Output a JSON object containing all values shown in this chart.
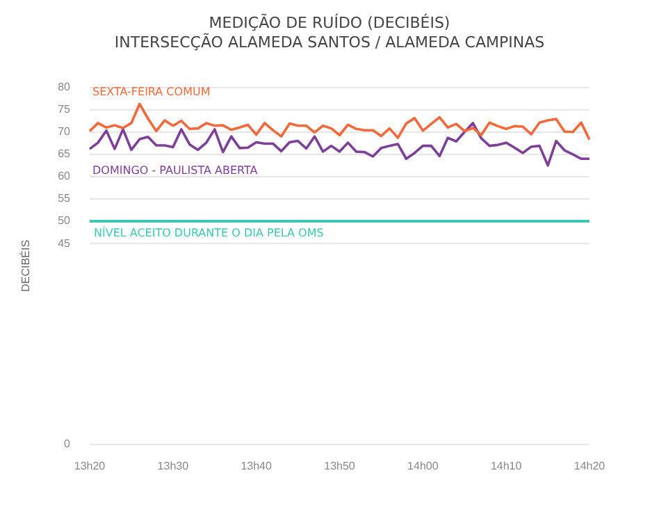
{
  "chart_data": {
    "type": "line",
    "title": "MEDIÇÃO DE RUÍDO (DECIBÉIS)",
    "subtitle": "INTERSECÇÃO ALAMEDA SANTOS / ALAMEDA CAMPINAS",
    "ylabel": "DECIBÉIS",
    "categories": [
      "13h20",
      null,
      null,
      null,
      null,
      null,
      null,
      null,
      null,
      null,
      "13h30",
      null,
      null,
      null,
      null,
      null,
      null,
      null,
      null,
      null,
      "13h40",
      null,
      null,
      null,
      null,
      null,
      null,
      null,
      null,
      null,
      "13h50",
      null,
      null,
      null,
      null,
      null,
      null,
      null,
      null,
      null,
      "14h00",
      null,
      null,
      null,
      null,
      null,
      null,
      null,
      null,
      null,
      "14h10",
      null,
      null,
      null,
      null,
      null,
      null,
      null,
      null,
      null,
      "14h20"
    ],
    "series": [
      {
        "name": "SEXTA-FEIRA COMUM",
        "color": "#f26a3b",
        "values": [
          70.2,
          72,
          71,
          71.5,
          70.9,
          72,
          76.3,
          73,
          70.2,
          72.6,
          71.4,
          72.5,
          70.7,
          70.8,
          72,
          71.4,
          71.5,
          70.5,
          71,
          71.6,
          69.4,
          72,
          70.4,
          69,
          71.9,
          71.4,
          71.4,
          69.9,
          71.4,
          70.8,
          69.3,
          71.6,
          70.7,
          70.4,
          70.4,
          69.1,
          70.8,
          68.7,
          71.9,
          73.1,
          70.3,
          71.8,
          73.3,
          71,
          71.8,
          70.2,
          70.9,
          69.3,
          72.1,
          71.3,
          70.7,
          71.3,
          71.2,
          69.5,
          72.1,
          72.6,
          72.9,
          70.1,
          70,
          72.1,
          68.3
        ]
      },
      {
        "name": "DOMINGO - PAULISTA ABERTA",
        "color": "#7d3f98",
        "values": [
          66.2,
          67.6,
          70.3,
          66.2,
          70.6,
          66,
          68.4,
          68.9,
          67,
          67,
          66.6,
          70.6,
          67.2,
          66,
          67.6,
          70.6,
          65.5,
          69,
          66.4,
          66.5,
          67.7,
          67.4,
          67.4,
          65.7,
          67.7,
          68,
          66.3,
          69,
          65.6,
          66.9,
          65.6,
          67.6,
          65.6,
          65.5,
          64.5,
          66.4,
          66.9,
          67.3,
          64,
          65.3,
          66.9,
          66.9,
          64.6,
          68.7,
          67.9,
          70,
          72,
          68.6,
          66.9,
          67.1,
          67.6,
          66.5,
          65.3,
          66.7,
          66.9,
          62.5,
          68,
          65.9,
          65,
          64,
          64
        ]
      }
    ],
    "ylim": [
      0,
      80
    ],
    "yticks": [
      0,
      45,
      50,
      55,
      60,
      65,
      70,
      75,
      80
    ],
    "ref_lines": [
      {
        "axis": "y",
        "value": 50,
        "label": "NÍVEL ACEITO DURANTE O DIA PELA OMS",
        "color": "#3cc8b4"
      }
    ],
    "grid": "y",
    "legend": false,
    "marker": "none",
    "line_style": "solid"
  }
}
